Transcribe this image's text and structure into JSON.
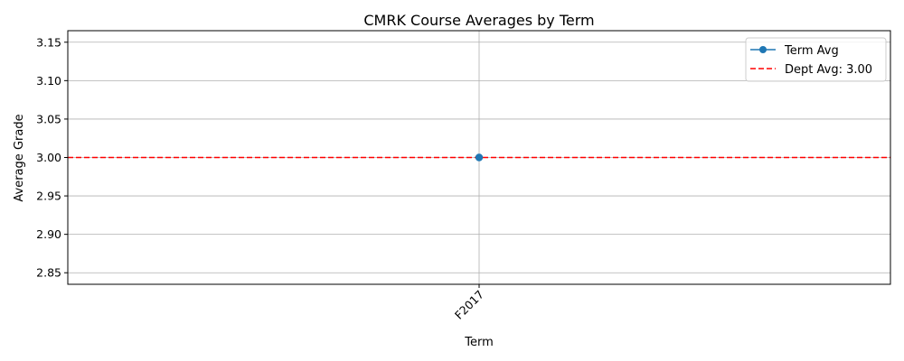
{
  "chart_data": {
    "type": "line",
    "title": "CMRK Course Averages by Term",
    "xlabel": "Term",
    "ylabel": "Average Grade",
    "categories": [
      "F2017"
    ],
    "series": [
      {
        "name": "Term Avg",
        "values": [
          3.0
        ],
        "color": "#1f77b4",
        "marker": "circle"
      }
    ],
    "reference_lines": [
      {
        "name": "Dept Avg: 3.00",
        "value": 3.0,
        "color": "#ff0000",
        "style": "dashed"
      }
    ],
    "yticks": [
      "2.85",
      "2.90",
      "2.95",
      "3.00",
      "3.05",
      "3.10",
      "3.15"
    ],
    "ylim": [
      2.835,
      3.165
    ],
    "grid": true,
    "legend_position": "top-right",
    "xtick_rotation": 45
  }
}
